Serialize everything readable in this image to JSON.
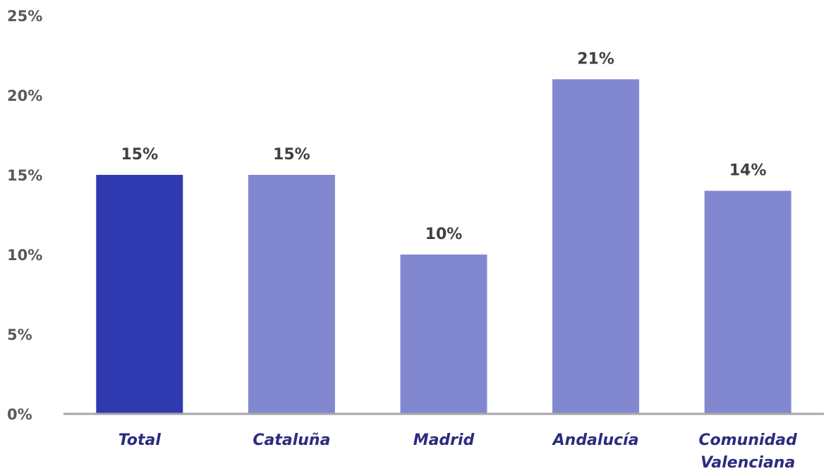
{
  "chart_data": {
    "type": "bar",
    "title": "",
    "xlabel": "",
    "ylabel": "",
    "categories": [
      "Total",
      "Cataluña",
      "Madrid",
      "Andalucía",
      "Comunidad Valenciana"
    ],
    "category_lines": [
      [
        "Total"
      ],
      [
        "Cataluña"
      ],
      [
        "Madrid"
      ],
      [
        "Andalucía"
      ],
      [
        "Comunidad",
        "Valenciana"
      ]
    ],
    "values": [
      15,
      15,
      10,
      21,
      14
    ],
    "data_labels": [
      "15%",
      "15%",
      "10%",
      "21%",
      "14%"
    ],
    "highlight": [
      true,
      false,
      false,
      false,
      false
    ],
    "ylim": [
      0,
      25
    ],
    "yticks": [
      0,
      5,
      10,
      15,
      20,
      25
    ],
    "ytick_labels": [
      "0%",
      "5%",
      "10%",
      "15%",
      "20%",
      "25%"
    ],
    "grid": false,
    "legend": "none",
    "colors": {
      "highlight_bar": "#303ab0",
      "bar": "#8288d0",
      "axis_line": "#a6a6a6",
      "data_label": "#404040",
      "tick_label": "#595959",
      "category_label": "#2c2c7e"
    }
  }
}
